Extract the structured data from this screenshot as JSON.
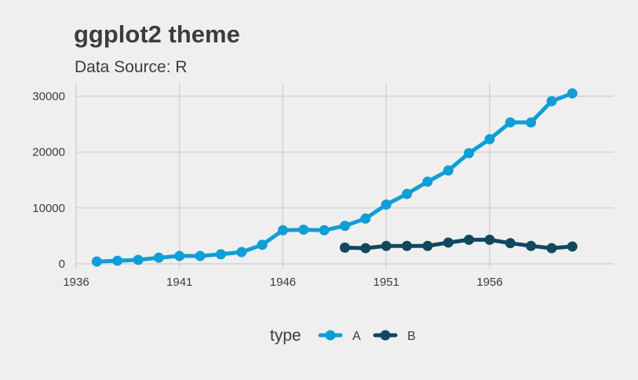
{
  "chart_data": {
    "type": "line",
    "title": "ggplot2 theme",
    "subtitle": "Data Source: R",
    "xlabel": "",
    "ylabel": "",
    "x_ticks": [
      "1936",
      "1941",
      "1946",
      "1951",
      "1956"
    ],
    "y_ticks": [
      "0",
      "10000",
      "20000",
      "30000"
    ],
    "xlim": [
      1936,
      1962
    ],
    "ylim": [
      0,
      31500
    ],
    "grid": true,
    "legend": {
      "title": "type",
      "position": "bottom"
    },
    "series": [
      {
        "name": "A",
        "color": "#0f9ed5",
        "x": [
          1937,
          1938,
          1939,
          1940,
          1941,
          1942,
          1943,
          1944,
          1945,
          1946,
          1947,
          1948,
          1949,
          1950,
          1951,
          1952,
          1953,
          1954,
          1955,
          1956,
          1957,
          1958,
          1959,
          1960
        ],
        "y": [
          400,
          550,
          700,
          1100,
          1400,
          1400,
          1700,
          2100,
          3400,
          6000,
          6100,
          6000,
          6800,
          8100,
          10600,
          12500,
          14700,
          16700,
          19800,
          22300,
          25300,
          25300,
          29100,
          30500
        ]
      },
      {
        "name": "B",
        "color": "#11485f",
        "x": [
          1949,
          1950,
          1951,
          1952,
          1953,
          1954,
          1955,
          1956,
          1957,
          1958,
          1959,
          1960
        ],
        "y": [
          2900,
          2800,
          3200,
          3200,
          3200,
          3800,
          4300,
          4300,
          3700,
          3200,
          2800,
          3100
        ]
      }
    ]
  }
}
